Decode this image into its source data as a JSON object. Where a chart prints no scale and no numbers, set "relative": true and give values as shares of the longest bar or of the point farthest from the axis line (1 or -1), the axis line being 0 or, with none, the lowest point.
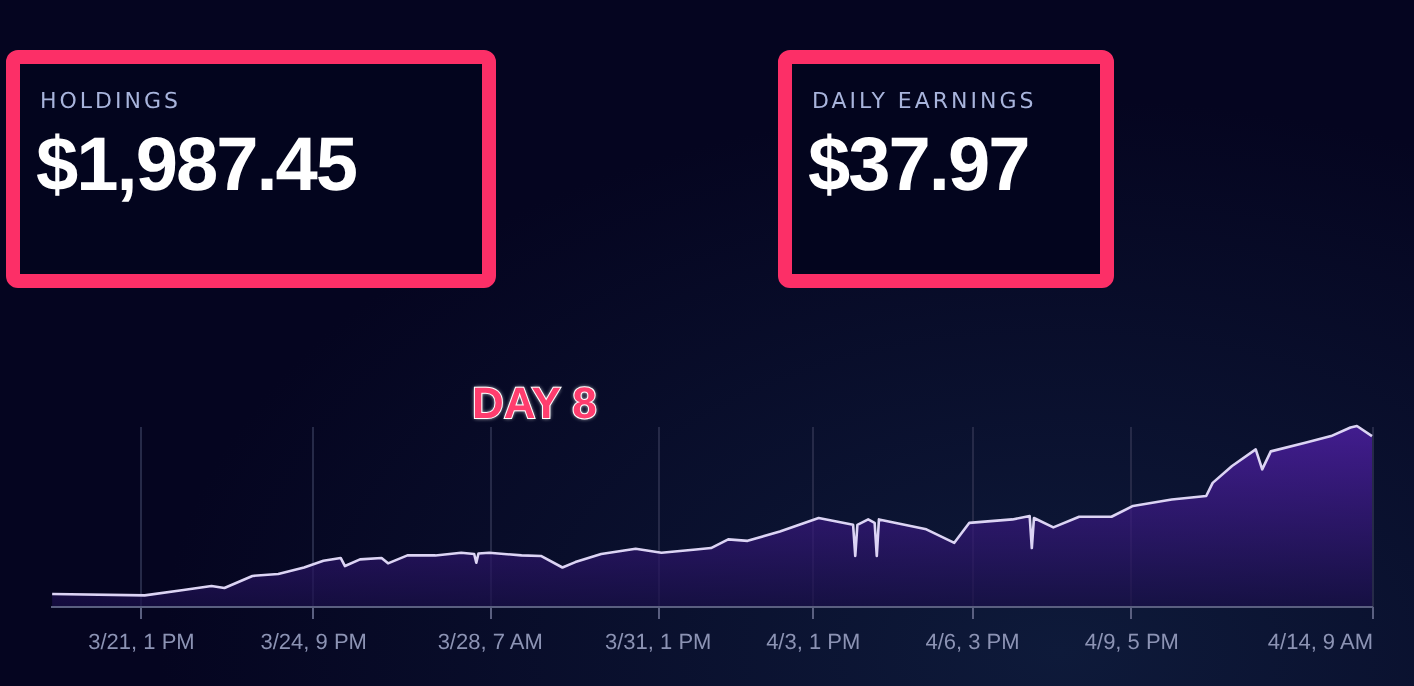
{
  "chart_data": {
    "type": "area",
    "relative": true,
    "grid": "x",
    "annotations": [
      "HOLDINGS",
      "$1,987.45",
      "DAILY EARNINGS",
      "$37.97",
      "DAY 8"
    ],
    "xlim": [
      "--03-19T19:00",
      "--04-14T09:00"
    ],
    "xticks": [
      {
        "value": "--03-21T13:00",
        "label": "3/21, 1 PM"
      },
      {
        "value": "--03-24T21:00",
        "label": "3/24, 9 PM"
      },
      {
        "value": "--03-28T07:00",
        "label": "3/28, 7 AM"
      },
      {
        "value": "--03-31T13:00",
        "label": "3/31, 1 PM"
      },
      {
        "value": "--04-03T13:00",
        "label": "4/3, 1 PM"
      },
      {
        "value": "--04-06T15:00",
        "label": "4/6, 3 PM"
      },
      {
        "value": "--04-09T17:00",
        "label": "4/9, 5 PM"
      },
      {
        "value": "--04-14T09:00",
        "label": "4/14, 9 AM"
      }
    ],
    "x": [
      "--03-19T20:00",
      "--03-21T15:00",
      "--03-22T09:00",
      "--03-22T22:00",
      "--03-23T04:00",
      "--03-23T17:00",
      "--03-24T05:00",
      "--03-24T17:00",
      "--03-25T02:00",
      "--03-25T10:00",
      "--03-25T12:00",
      "--03-25T19:00",
      "--03-26T05:00",
      "--03-26T08:00",
      "--03-26T17:00",
      "--03-27T06:00",
      "--03-27T18:00",
      "--03-28T00:00",
      "--03-28T01:00",
      "--03-28T02:00",
      "--03-28T07:00",
      "--03-28T22:00",
      "--03-29T07:00",
      "--03-29T17:00",
      "--03-29T23:00",
      "--03-30T11:00",
      "--03-31T03:00",
      "--03-31T15:00",
      "--04-01T07:00",
      "--04-01T14:00",
      "--04-01T22:00",
      "--04-02T07:00",
      "--04-02T22:00",
      "--04-03T16:00",
      "--04-04T08:00",
      "--04-04T09:00",
      "--04-04T10:00",
      "--04-04T15:00",
      "--04-04T18:00",
      "--04-04T19:00",
      "--04-04T20:00",
      "--04-05T18:00",
      "--04-06T07:00",
      "--04-06T14:00",
      "--04-07T10:00",
      "--04-07T18:00",
      "--04-07T19:00",
      "--04-07T20:00",
      "--04-08T05:00",
      "--04-08T17:00",
      "--04-09T08:00",
      "--04-09T18:00",
      "--04-10T12:00",
      "--04-11T04:00",
      "--04-11T07:00",
      "--04-11T16:00",
      "--04-12T03:00",
      "--04-12T06:00",
      "--04-12T10:00",
      "--04-13T02:00",
      "--04-13T14:00",
      "--04-13T23:00",
      "--04-14T02:00",
      "--04-14T09:00"
    ],
    "series": [
      {
        "color": "#dcd4f4",
        "values": [
          0.067,
          0.059,
          0.089,
          0.111,
          0.1,
          0.167,
          0.178,
          0.214,
          0.251,
          0.267,
          0.222,
          0.259,
          0.267,
          0.237,
          0.281,
          0.281,
          0.296,
          0.289,
          0.24,
          0.292,
          0.296,
          0.281,
          0.278,
          0.214,
          0.244,
          0.289,
          0.318,
          0.296,
          0.314,
          0.322,
          0.37,
          0.362,
          0.414,
          0.489,
          0.451,
          0.278,
          0.451,
          0.481,
          0.462,
          0.278,
          0.481,
          0.426,
          0.351,
          0.462,
          0.481,
          0.5,
          0.322,
          0.489,
          0.437,
          0.496,
          0.496,
          0.556,
          0.592,
          0.611,
          0.684,
          0.778,
          0.87,
          0.759,
          0.859,
          0.907,
          0.944,
          0.992,
          1,
          0.944
        ]
      }
    ]
  }
}
